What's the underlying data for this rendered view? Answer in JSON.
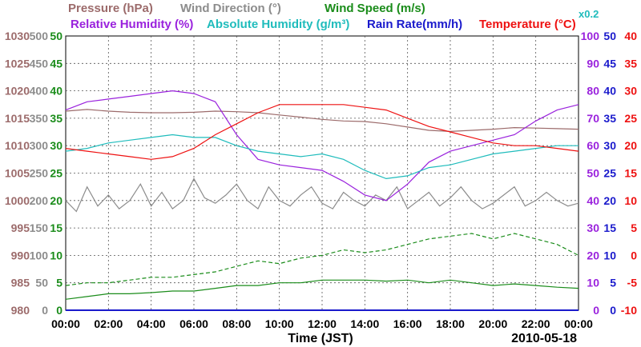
{
  "chart_data": {
    "type": "line",
    "title_rows": [
      [
        {
          "text": "Pressure (hPa)",
          "color": "#9c6b6b"
        },
        {
          "text": "Wind Direction (°)",
          "color": "#8c8c8c"
        },
        {
          "text": "Wind Speed (m/s)",
          "color": "#1a8c1a"
        }
      ],
      [
        {
          "text": "Relative Humidity (%)",
          "color": "#9a22dd"
        },
        {
          "text": "Absolute Humidity (g/m³)",
          "color": "#1fbcbc"
        },
        {
          "text": "Rain Rate(mm/h)",
          "color": "#1a1acc"
        },
        {
          "text": "Temperature (°C)",
          "color": "#ee1111"
        }
      ]
    ],
    "abs_humidity_scale_note": "x0.2",
    "xlabel": "Time (JST)",
    "date_label": "2010-05-18",
    "x_ticks": [
      "00:00",
      "02:00",
      "04:00",
      "06:00",
      "08:00",
      "10:00",
      "12:00",
      "14:00",
      "16:00",
      "18:00",
      "20:00",
      "22:00",
      "00:00"
    ],
    "x_range_hours": [
      0,
      24
    ],
    "grid": true,
    "axes": {
      "pressure": {
        "color": "#9c6b6b",
        "range": [
          980,
          1030
        ],
        "ticks": [
          "1030",
          "1025",
          "1020",
          "1015",
          "1010",
          "1005",
          "1000",
          "995",
          "990",
          "985",
          "980"
        ]
      },
      "wind_dir": {
        "color": "#8c8c8c",
        "range": [
          0,
          500
        ],
        "ticks": [
          "500",
          "450",
          "400",
          "350",
          "300",
          "250",
          "200",
          "150",
          "100",
          "50",
          "0"
        ]
      },
      "wind_speed": {
        "color": "#1a8c1a",
        "range": [
          0,
          50
        ],
        "ticks": [
          "50",
          "45",
          "40",
          "35",
          "30",
          "25",
          "20",
          "15",
          "10",
          "5",
          "0"
        ]
      },
      "humidity": {
        "color": "#9a22dd",
        "range": [
          0,
          100
        ],
        "ticks": [
          "100",
          "90",
          "80",
          "70",
          "60",
          "50",
          "40",
          "30",
          "20",
          "10",
          "0"
        ]
      },
      "rain": {
        "color": "#1a1acc",
        "range": [
          0,
          50
        ],
        "ticks": [
          "50",
          "45",
          "40",
          "35",
          "30",
          "25",
          "20",
          "15",
          "10",
          "5",
          "0"
        ]
      },
      "temperature": {
        "color": "#ee1111",
        "range": [
          -10,
          40
        ],
        "ticks": [
          "40",
          "35",
          "30",
          "25",
          "20",
          "15",
          "10",
          "5",
          "0",
          "-5",
          "-10"
        ]
      }
    },
    "series": [
      {
        "name": "Pressure (hPa)",
        "axis": "pressure",
        "color": "#9c6b6b",
        "x": [
          0,
          1,
          2,
          3,
          4,
          5,
          6,
          7,
          8,
          9,
          10,
          11,
          12,
          13,
          14,
          15,
          16,
          17,
          18,
          19,
          20,
          21,
          22,
          23,
          24
        ],
        "y": [
          1016.3,
          1016.6,
          1016.3,
          1016.1,
          1016.0,
          1016.0,
          1016.1,
          1016.3,
          1016.2,
          1016.0,
          1015.6,
          1015.2,
          1014.8,
          1014.5,
          1014.4,
          1014.0,
          1013.4,
          1012.8,
          1012.6,
          1012.8,
          1013.0,
          1013.3,
          1013.2,
          1013.1,
          1013.0
        ]
      },
      {
        "name": "Wind Direction (°)",
        "axis": "wind_dir",
        "color": "#8c8c8c",
        "x": [
          0,
          0.5,
          1,
          1.5,
          2,
          2.5,
          3,
          3.5,
          4,
          4.5,
          5,
          5.5,
          6,
          6.5,
          7,
          7.5,
          8,
          8.5,
          9,
          9.5,
          10,
          10.5,
          11,
          11.5,
          12,
          12.5,
          13,
          13.5,
          14,
          14.5,
          15,
          15.5,
          16,
          16.5,
          17,
          17.5,
          18,
          18.5,
          19,
          19.5,
          20,
          20.5,
          21,
          21.5,
          22,
          22.5,
          23,
          23.5,
          24
        ],
        "y": [
          200,
          180,
          225,
          190,
          210,
          185,
          200,
          230,
          190,
          215,
          185,
          200,
          240,
          205,
          195,
          210,
          230,
          200,
          185,
          225,
          200,
          190,
          210,
          225,
          195,
          185,
          215,
          200,
          190,
          210,
          200,
          225,
          185,
          200,
          215,
          190,
          205,
          225,
          200,
          185,
          195,
          210,
          225,
          190,
          200,
          215,
          200,
          190,
          195
        ]
      },
      {
        "name": "Wind Speed (m/s) avg",
        "axis": "wind_speed",
        "color": "#1a8c1a",
        "x": [
          0,
          1,
          2,
          3,
          4,
          5,
          6,
          7,
          8,
          9,
          10,
          11,
          12,
          13,
          14,
          15,
          16,
          17,
          18,
          19,
          20,
          21,
          22,
          23,
          24
        ],
        "y": [
          2,
          2.5,
          3,
          3,
          3.2,
          3.5,
          3.5,
          4,
          4.5,
          4.5,
          5,
          5,
          5.5,
          5.5,
          5.5,
          5.3,
          5.5,
          5,
          5.5,
          5,
          4.5,
          4.8,
          4.5,
          4.2,
          4
        ]
      },
      {
        "name": "Wind Speed (m/s) max",
        "axis": "wind_speed",
        "color": "#1a8c1a",
        "dashed": true,
        "x": [
          0,
          1,
          2,
          3,
          4,
          5,
          6,
          7,
          8,
          9,
          10,
          11,
          12,
          13,
          14,
          15,
          16,
          17,
          18,
          19,
          20,
          21,
          22,
          23,
          24
        ],
        "y": [
          4.5,
          5,
          5,
          5.5,
          6,
          6,
          6.5,
          7,
          8,
          9,
          8.5,
          9.5,
          10,
          11,
          10.5,
          11,
          12,
          13,
          13.5,
          14,
          13,
          14,
          13,
          12,
          10
        ]
      },
      {
        "name": "Relative Humidity (%)",
        "axis": "humidity",
        "color": "#9a22dd",
        "x": [
          0,
          1,
          2,
          3,
          4,
          5,
          6,
          7,
          8,
          9,
          10,
          11,
          12,
          13,
          14,
          15,
          16,
          17,
          18,
          19,
          20,
          21,
          22,
          23,
          24
        ],
        "y": [
          73,
          76,
          77,
          78,
          79,
          80,
          79,
          76,
          64,
          55,
          53,
          52,
          51,
          47,
          42,
          40,
          46,
          54,
          58,
          60,
          62,
          64,
          69,
          73,
          75
        ]
      },
      {
        "name": "Absolute Humidity (g/m³)",
        "axis": "humidity",
        "color": "#1fbcbc",
        "x": [
          0,
          1,
          2,
          3,
          4,
          5,
          6,
          7,
          8,
          9,
          10,
          11,
          12,
          13,
          14,
          15,
          16,
          17,
          18,
          19,
          20,
          21,
          22,
          23,
          24
        ],
        "y": [
          58,
          59,
          61,
          62,
          63,
          64,
          63,
          63,
          60,
          58,
          57,
          56,
          57,
          55,
          51,
          48,
          49,
          52,
          53,
          55,
          57,
          58,
          59,
          60,
          60
        ]
      },
      {
        "name": "Rain Rate(mm/h)",
        "axis": "rain",
        "color": "#1a1acc",
        "x": [
          0,
          24
        ],
        "y": [
          0,
          0
        ]
      },
      {
        "name": "Temperature (°C)",
        "axis": "temperature",
        "color": "#ee1111",
        "x": [
          0,
          1,
          2,
          3,
          4,
          5,
          6,
          7,
          8,
          9,
          10,
          11,
          12,
          13,
          14,
          15,
          16,
          17,
          18,
          19,
          20,
          21,
          22,
          23,
          24
        ],
        "y": [
          19.5,
          19,
          18.5,
          18,
          17.5,
          18,
          19.5,
          22,
          24,
          26,
          27.5,
          27.5,
          27.5,
          27.5,
          27,
          26.5,
          25,
          23.5,
          22.5,
          21.5,
          20.5,
          20,
          20,
          19.5,
          19
        ]
      }
    ]
  }
}
